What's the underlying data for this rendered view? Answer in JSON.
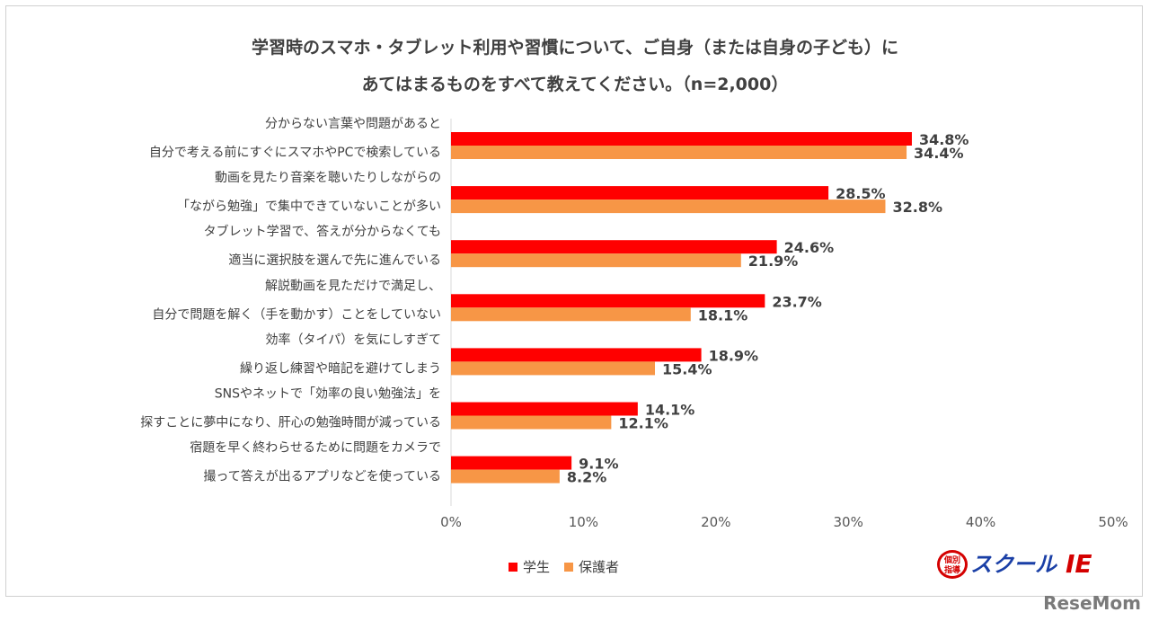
{
  "chart_data": {
    "type": "bar",
    "orientation": "horizontal",
    "title_lines": [
      "学習時のスマホ・タブレット利用や習慣について、ご自身（または自身の子ども）に",
      "あてはまるものをすべて教えてください。（n=2,000）"
    ],
    "categories": [
      [
        "分からない言葉や問題があると",
        "自分で考える前にすぐにスマホやPCで検索している"
      ],
      [
        "動画を見たり音楽を聴いたりしながらの",
        "「ながら勉強」で集中できていないことが多い"
      ],
      [
        "タブレット学習で、答えが分からなくても",
        "適当に選択肢を選んで先に進んでいる"
      ],
      [
        "解説動画を見ただけで満足し、",
        "自分で問題を解く（手を動かす）ことをしていない"
      ],
      [
        "効率（タイパ）を気にしすぎて",
        "繰り返し練習や暗記を避けてしまう"
      ],
      [
        "SNSやネットで「効率の良い勉強法」を",
        "探すことに夢中になり、肝心の勉強時間が減っている"
      ],
      [
        "宿題を早く終わらせるために問題をカメラで",
        "撮って答えが出るアプリなどを使っている"
      ]
    ],
    "series": [
      {
        "name": "学生",
        "color": "#ff0000",
        "values": [
          34.8,
          28.5,
          24.6,
          23.7,
          18.9,
          14.1,
          9.1
        ],
        "labels": [
          "34.8%",
          "28.5%",
          "24.6%",
          "23.7%",
          "18.9%",
          "14.1%",
          "9.1%"
        ]
      },
      {
        "name": "保護者",
        "color": "#f79646",
        "values": [
          34.4,
          32.8,
          21.9,
          18.1,
          15.4,
          12.1,
          8.2
        ],
        "labels": [
          "34.4%",
          "32.8%",
          "21.9%",
          "18.1%",
          "15.4%",
          "12.1%",
          "8.2%"
        ]
      }
    ],
    "xlim": [
      0,
      50
    ],
    "xticks": [
      "0%",
      "10%",
      "20%",
      "30%",
      "40%",
      "50%"
    ],
    "grid": false,
    "legend_position": "bottom"
  },
  "logo": {
    "badge": "個別指導",
    "text": "スクールIE"
  },
  "watermark": "ReseMom"
}
